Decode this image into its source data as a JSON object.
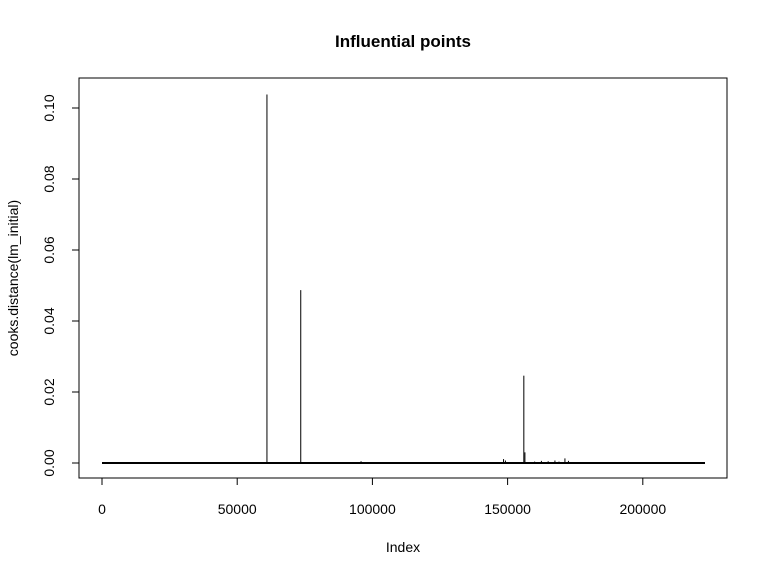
{
  "chart_data": {
    "type": "line",
    "title": "Influential points",
    "xlabel": "Index",
    "ylabel": "cooks.distance(lm_initial)",
    "xlim": [
      0,
      223000
    ],
    "ylim": [
      0,
      0.104
    ],
    "x_ticks": [
      0,
      50000,
      100000,
      150000,
      200000
    ],
    "x_tick_labels": [
      "0",
      "50000",
      "100000",
      "150000",
      "200000"
    ],
    "y_ticks": [
      0,
      0.02,
      0.04,
      0.06,
      0.08,
      0.1
    ],
    "y_tick_labels": [
      "0.00",
      "0.02",
      "0.04",
      "0.06",
      "0.08",
      "0.10"
    ],
    "grid": false,
    "line_color": "#000000",
    "series": [
      {
        "x": [
          61000,
          73500,
          95800,
          148500,
          149200,
          156000,
          156400,
          160000,
          162500,
          165000,
          167500,
          169000,
          171200,
          172500,
          217000
        ],
        "y": [
          0.1038,
          0.0487,
          0.0005,
          0.0011,
          0.0007,
          0.0246,
          0.003,
          0.0004,
          0.0006,
          0.0005,
          0.0007,
          0.0004,
          0.0013,
          0.0006,
          0.0002
        ]
      }
    ]
  }
}
